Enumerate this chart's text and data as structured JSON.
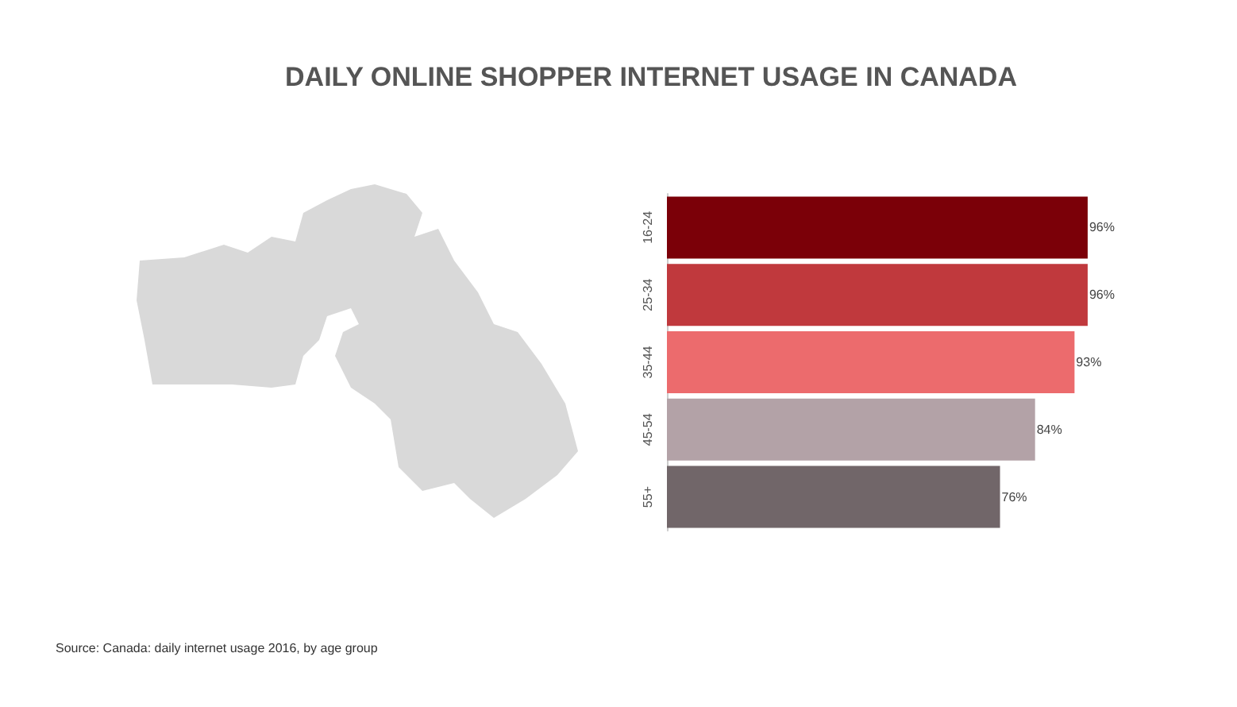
{
  "chart_data": {
    "type": "bar",
    "orientation": "horizontal",
    "title": "DAILY ONLINE SHOPPER INTERNET USAGE IN CANADA",
    "categories": [
      "16-24",
      "25-34",
      "35-44",
      "45-54",
      "55+"
    ],
    "values": [
      96,
      96,
      93,
      84,
      76
    ],
    "colors": [
      "#7b0008",
      "#c0393d",
      "#ec6b6d",
      "#b3a2a7",
      "#716669"
    ],
    "value_labels": [
      "96%",
      "96%",
      "93%",
      "84%",
      "76%"
    ],
    "annotations": [
      "Source: Canada: daily internet usage 2016, by age group"
    ]
  }
}
